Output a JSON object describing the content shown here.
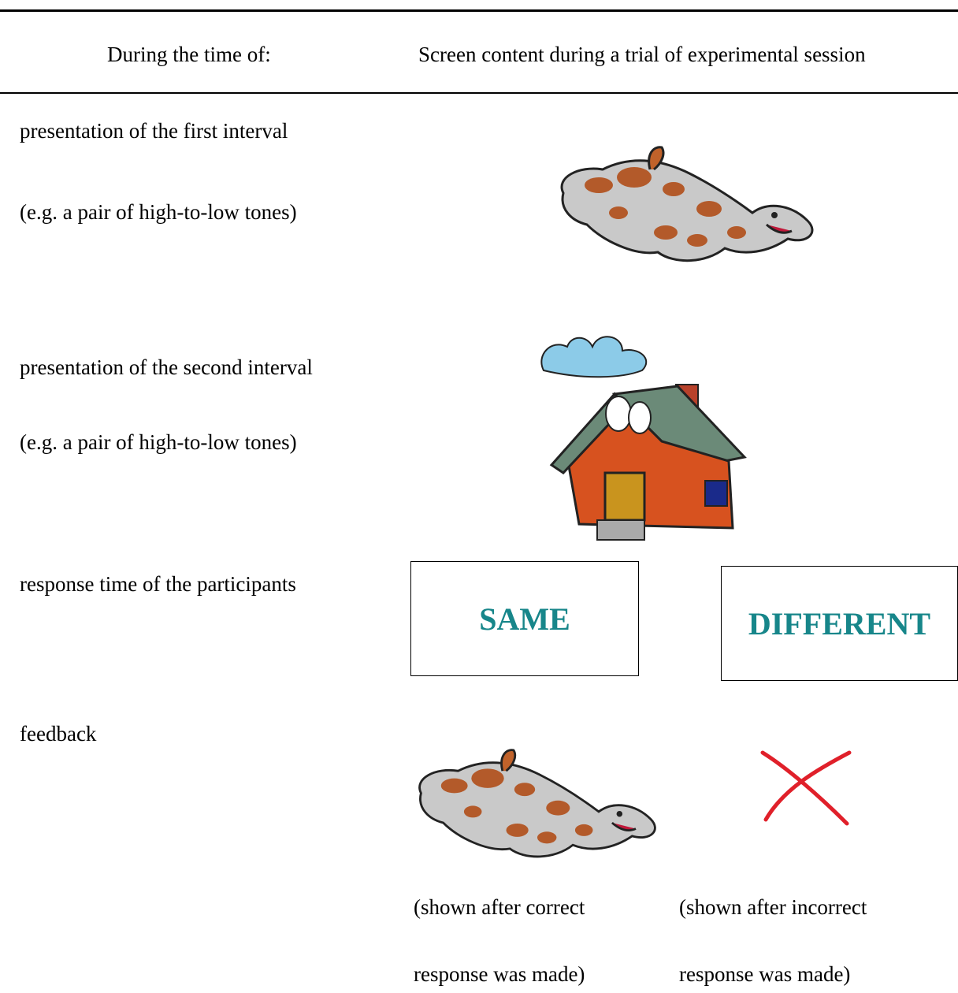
{
  "table": {
    "header": [
      "During the time of:",
      "Screen content during a trial of experimental session"
    ],
    "rows": [
      {
        "label": [
          "presentation of the first interval",
          "(e.g. a pair of high-to-low tones)"
        ]
      },
      {
        "label": [
          "presentation of the second interval",
          "(e.g. a pair of high-to-low tones)"
        ]
      },
      {
        "label": [
          "response time of the participants"
        ],
        "buttons": [
          "SAME",
          "DIFFERENT"
        ]
      },
      {
        "label": [
          "feedback"
        ],
        "captions": [
          [
            "(shown after correct",
            "response was made)"
          ],
          [
            "(shown after incorrect",
            "response was made)"
          ]
        ]
      }
    ]
  }
}
